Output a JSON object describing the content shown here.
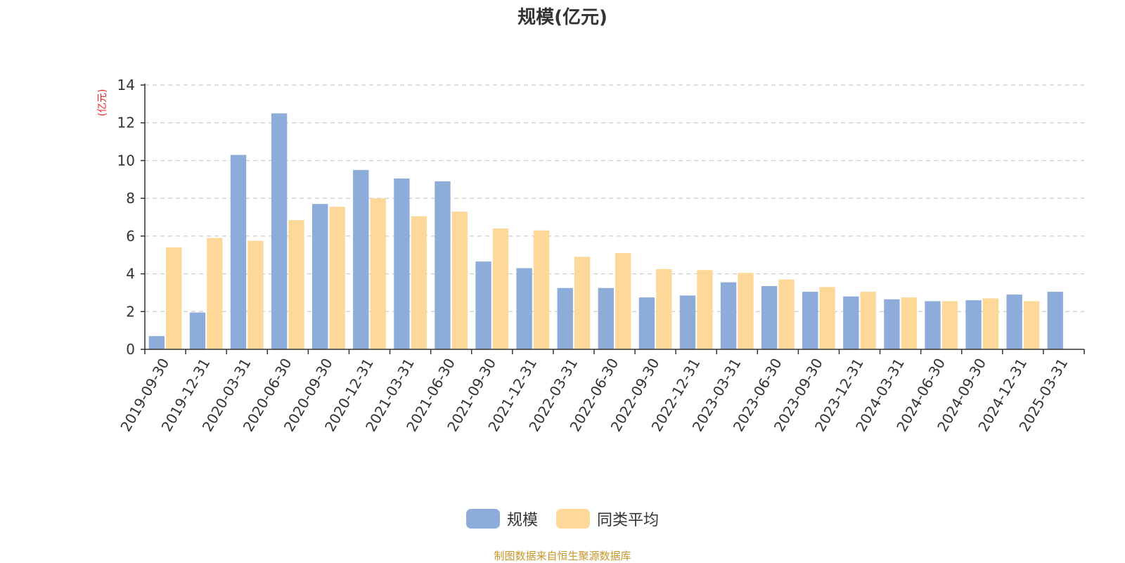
{
  "chart_data": {
    "type": "bar",
    "title": "规模(亿元)",
    "ylabel": "(亿元)",
    "xlabel": "",
    "ylim": [
      0,
      14
    ],
    "yticks": [
      "0",
      "2",
      "4",
      "6",
      "8",
      "10",
      "12",
      "14"
    ],
    "grid": true,
    "legend_position": "bottom",
    "categories": [
      "2019-09-30",
      "2019-12-31",
      "2020-03-31",
      "2020-06-30",
      "2020-09-30",
      "2020-12-31",
      "2021-03-31",
      "2021-06-30",
      "2021-09-30",
      "2021-12-31",
      "2022-03-31",
      "2022-06-30",
      "2022-09-30",
      "2022-12-31",
      "2023-03-31",
      "2023-06-30",
      "2023-09-30",
      "2023-12-31",
      "2024-03-31",
      "2024-06-30",
      "2024-09-30",
      "2024-12-31",
      "2025-03-31"
    ],
    "series": [
      {
        "name": "规模",
        "color": "#8eacd9",
        "values": [
          0.7,
          1.95,
          10.3,
          12.5,
          7.7,
          9.5,
          9.05,
          8.9,
          4.65,
          4.3,
          3.25,
          3.25,
          2.75,
          2.85,
          3.55,
          3.35,
          3.05,
          2.8,
          2.65,
          2.55,
          2.6,
          2.9,
          3.05
        ]
      },
      {
        "name": "同类平均",
        "color": "#fdd898",
        "values": [
          5.4,
          5.9,
          5.75,
          6.85,
          7.55,
          8.0,
          7.05,
          7.3,
          6.4,
          6.3,
          4.9,
          5.1,
          4.25,
          4.2,
          4.05,
          3.7,
          3.3,
          3.05,
          2.75,
          2.55,
          2.7,
          2.55,
          null
        ]
      }
    ]
  },
  "source_note": "制图数据来自恒生聚源数据库"
}
